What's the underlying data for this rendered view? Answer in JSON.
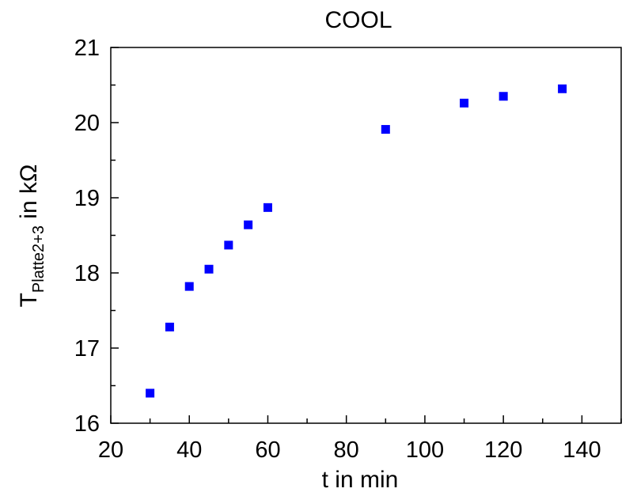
{
  "chart_data": {
    "type": "scatter",
    "title": "COOL",
    "xlabel": "t in min",
    "ylabel": {
      "main": "T",
      "subscript": "Platte2+3",
      "suffix": " in kΩ"
    },
    "xlim": [
      20,
      150
    ],
    "ylim": [
      16,
      21
    ],
    "xticks": [
      20,
      40,
      60,
      80,
      100,
      120,
      140
    ],
    "yticks": [
      16,
      17,
      18,
      19,
      20,
      21
    ],
    "grid": false,
    "marker": "square",
    "color": "#0000ff",
    "series": [
      {
        "x": [
          30,
          35,
          40,
          45,
          50,
          55,
          60,
          90,
          110,
          120,
          135
        ],
        "y": [
          16.4,
          17.28,
          17.82,
          18.05,
          18.37,
          18.64,
          18.87,
          19.91,
          20.26,
          20.35,
          20.45
        ]
      }
    ]
  }
}
